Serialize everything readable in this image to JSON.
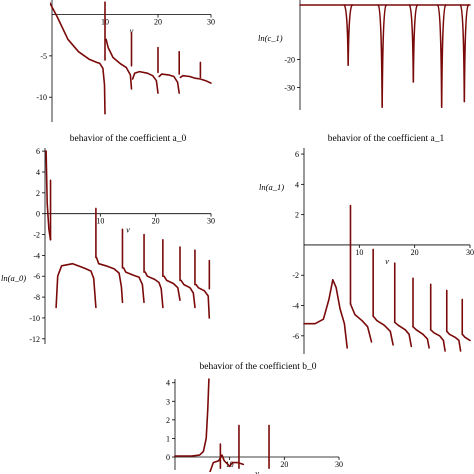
{
  "chart_data": [
    {
      "type": "line",
      "title": "",
      "xlabel": "v",
      "ylabel": "",
      "xlim": [
        0,
        30
      ],
      "ylim": [
        -13,
        2
      ],
      "xticks": [
        10,
        20,
        30
      ],
      "yticks": [
        -5,
        -10
      ],
      "series": [
        {
          "points": [
            [
              -0.5,
              1.5
            ],
            [
              1,
              -0.3
            ],
            [
              3,
              -3
            ],
            [
              5,
              -4.5
            ],
            [
              7,
              -5.4
            ],
            [
              8.5,
              -5.8
            ],
            [
              9,
              -5.9
            ],
            [
              9.6,
              -6.5
            ],
            [
              9.9,
              -8.5
            ],
            [
              10,
              -12
            ]
          ]
        },
        {
          "points": [
            [
              10.2,
              -3
            ],
            [
              10.6,
              -4
            ],
            [
              11.5,
              -5.2
            ],
            [
              13,
              -6
            ],
            [
              14,
              -6.4
            ],
            [
              14.8,
              -7.3
            ],
            [
              15,
              -9
            ]
          ]
        },
        {
          "points": [
            [
              15.2,
              -7.8
            ],
            [
              15.6,
              -7.1
            ],
            [
              16.5,
              -6.9
            ],
            [
              18,
              -7.1
            ],
            [
              19,
              -7.4
            ],
            [
              19.7,
              -8
            ],
            [
              20,
              -9.5
            ]
          ]
        },
        {
          "points": [
            [
              20.2,
              -7.5
            ],
            [
              20.7,
              -7.2
            ],
            [
              22,
              -7.3
            ],
            [
              23,
              -7.5
            ],
            [
              23.7,
              -8.2
            ],
            [
              24,
              -9.5
            ]
          ]
        },
        {
          "points": [
            [
              24.2,
              -7.6
            ],
            [
              24.7,
              -7.4
            ],
            [
              26,
              -7.5
            ],
            [
              27,
              -7.7
            ],
            [
              28,
              -7.8
            ],
            [
              29,
              -8
            ],
            [
              30,
              -8.3
            ]
          ]
        }
      ],
      "spikes": [
        {
          "x": 10,
          "from": -5.5,
          "to": 1.5
        },
        {
          "x": 15,
          "from": -6.2,
          "to": -2.2
        },
        {
          "x": 20,
          "from": -7,
          "to": -4
        },
        {
          "x": 24,
          "from": -7.2,
          "to": -4.5
        },
        {
          "x": 28,
          "from": -7.6,
          "to": -5.8
        }
      ]
    },
    {
      "type": "line",
      "title": "",
      "xlabel": "",
      "ylabel": "ln(c_1)",
      "xlim": [
        0,
        30
      ],
      "ylim": [
        -38,
        2
      ],
      "xticks": [],
      "yticks": [
        -20,
        -30
      ],
      "flat": {
        "x0": 0,
        "x1": 30,
        "y": -0.5
      },
      "dips": [
        {
          "x": 8.5,
          "depth": -22
        },
        {
          "x": 14.5,
          "depth": -37
        },
        {
          "x": 20,
          "depth": -28
        },
        {
          "x": 25,
          "depth": -37
        },
        {
          "x": 29,
          "depth": -35
        }
      ]
    },
    {
      "type": "line",
      "title": "behavior of the coefficient a_0",
      "xlabel": "v",
      "ylabel": "ln(a_0)",
      "xlim": [
        0,
        30
      ],
      "ylim": [
        -12.5,
        6.3
      ],
      "xticks": [
        10,
        20,
        30
      ],
      "yticks": [
        6,
        4,
        2,
        0,
        -2,
        -4,
        -6,
        -8,
        -10,
        -12
      ],
      "series": [
        {
          "points": [
            [
              0.2,
              6
            ],
            [
              0.4,
              1
            ],
            [
              0.7,
              -1.5
            ],
            [
              1,
              -2.5
            ]
          ]
        },
        {
          "points": [
            [
              2,
              -9
            ],
            [
              2.3,
              -6
            ],
            [
              3,
              -5
            ],
            [
              5,
              -4.8
            ],
            [
              7,
              -5.2
            ],
            [
              8.3,
              -5.5
            ],
            [
              8.8,
              -6.2
            ],
            [
              9.2,
              -9
            ]
          ]
        },
        {
          "points": [
            [
              9.3,
              -4.2
            ],
            [
              9.7,
              -4.8
            ],
            [
              11,
              -5
            ],
            [
              12.5,
              -5.3
            ],
            [
              13.4,
              -5.7
            ],
            [
              13.8,
              -7
            ],
            [
              14,
              -8.5
            ]
          ]
        },
        {
          "points": [
            [
              14.2,
              -5.2
            ],
            [
              14.6,
              -5.6
            ],
            [
              16,
              -5.9
            ],
            [
              17,
              -6.1
            ],
            [
              17.6,
              -6.8
            ],
            [
              17.9,
              -8.5
            ]
          ]
        },
        {
          "points": [
            [
              18.1,
              -5.6
            ],
            [
              18.5,
              -6
            ],
            [
              19.8,
              -6.3
            ],
            [
              20.6,
              -6.6
            ],
            [
              21,
              -7.2
            ],
            [
              21.3,
              -9
            ]
          ]
        },
        {
          "points": [
            [
              21.5,
              -6
            ],
            [
              22,
              -6.4
            ],
            [
              23.2,
              -6.7
            ],
            [
              24,
              -7.1
            ],
            [
              24.4,
              -8.3
            ]
          ]
        },
        {
          "points": [
            [
              24.6,
              -6.4
            ],
            [
              25.1,
              -6.8
            ],
            [
              26.2,
              -7.1
            ],
            [
              26.8,
              -7.6
            ],
            [
              27.1,
              -9
            ]
          ]
        },
        {
          "points": [
            [
              27.3,
              -6.8
            ],
            [
              27.7,
              -7.1
            ],
            [
              28.8,
              -7.4
            ],
            [
              29.5,
              -7.9
            ],
            [
              29.7,
              -10
            ]
          ]
        }
      ],
      "spikes": [
        {
          "x": 1,
          "from": -2.5,
          "to": 3.2
        },
        {
          "x": 9.2,
          "from": -4.2,
          "to": 0.5
        },
        {
          "x": 14,
          "from": -5.2,
          "to": -1.5
        },
        {
          "x": 17.9,
          "from": -5.6,
          "to": -2
        },
        {
          "x": 21.3,
          "from": -6,
          "to": -2.5
        },
        {
          "x": 24.4,
          "from": -6.4,
          "to": -3.2
        },
        {
          "x": 27.1,
          "from": -6.8,
          "to": -3.5
        },
        {
          "x": 29.7,
          "from": -7.2,
          "to": -4.5
        }
      ]
    },
    {
      "type": "line",
      "title": "behavior of the coefficient a_1",
      "xlabel": "v",
      "ylabel": "ln(a_1)",
      "xlim": [
        0,
        30
      ],
      "ylim": [
        -7.2,
        6.4
      ],
      "xticks": [
        10,
        20,
        30
      ],
      "yticks": [
        6,
        4,
        2,
        -2,
        -4,
        -6
      ],
      "series": [
        {
          "points": [
            [
              0,
              -5.2
            ],
            [
              2,
              -5.2
            ],
            [
              3.5,
              -4.9
            ],
            [
              4.5,
              -3.6
            ],
            [
              5.2,
              -2.3
            ],
            [
              5.8,
              -2.8
            ],
            [
              6.5,
              -4.2
            ],
            [
              7.3,
              -5.2
            ],
            [
              7.8,
              -6.8
            ]
          ]
        },
        {
          "points": [
            [
              8.4,
              -3.9
            ],
            [
              9.2,
              -4.6
            ],
            [
              10.5,
              -5
            ],
            [
              11.5,
              -5.4
            ],
            [
              12.2,
              -6.4
            ]
          ]
        },
        {
          "points": [
            [
              12.5,
              -4.7
            ],
            [
              13.2,
              -5
            ],
            [
              14.5,
              -5.3
            ],
            [
              15.6,
              -5.7
            ],
            [
              16.1,
              -6.6
            ]
          ]
        },
        {
          "points": [
            [
              16.4,
              -5.1
            ],
            [
              17,
              -5.3
            ],
            [
              18.3,
              -5.6
            ],
            [
              19,
              -5.9
            ],
            [
              19.4,
              -6.7
            ]
          ]
        },
        {
          "points": [
            [
              19.7,
              -5.4
            ],
            [
              20.3,
              -5.6
            ],
            [
              21.5,
              -5.9
            ],
            [
              22.3,
              -6.2
            ],
            [
              22.6,
              -6.8
            ]
          ]
        },
        {
          "points": [
            [
              22.9,
              -5.6
            ],
            [
              23.5,
              -5.8
            ],
            [
              24.5,
              -6
            ],
            [
              25.2,
              -6.3
            ],
            [
              25.5,
              -7
            ]
          ]
        },
        {
          "points": [
            [
              25.8,
              -5.7
            ],
            [
              26.3,
              -5.9
            ],
            [
              27.3,
              -6.1
            ],
            [
              28,
              -6.3
            ],
            [
              28.3,
              -7
            ]
          ]
        },
        {
          "points": [
            [
              28.6,
              -5.9
            ],
            [
              29.1,
              -6.1
            ],
            [
              30,
              -6.3
            ]
          ]
        }
      ],
      "spikes": [
        {
          "x": 8.4,
          "from": -3.9,
          "to": 2.6
        },
        {
          "x": 12.5,
          "from": -4.7,
          "to": -0.3
        },
        {
          "x": 16.4,
          "from": -5.1,
          "to": -1.2
        },
        {
          "x": 19.7,
          "from": -5.4,
          "to": -2.2
        },
        {
          "x": 22.9,
          "from": -5.6,
          "to": -2.6
        },
        {
          "x": 25.8,
          "from": -5.7,
          "to": -3
        },
        {
          "x": 28.6,
          "from": -5.9,
          "to": -3.6
        }
      ]
    },
    {
      "type": "line",
      "title": "behavior of the coefficient b_0",
      "xlabel": "v",
      "ylabel": "",
      "xlim": [
        0,
        30
      ],
      "ylim": [
        -0.7,
        4.2
      ],
      "xticks": [
        10,
        20,
        30
      ],
      "yticks": [
        4,
        3,
        2,
        1,
        0
      ],
      "series": [
        {
          "points": [
            [
              0,
              0.05
            ],
            [
              3,
              0.05
            ],
            [
              4.5,
              0.1
            ],
            [
              5.2,
              0.3
            ],
            [
              5.7,
              1
            ],
            [
              6,
              2.6
            ],
            [
              6.2,
              4.2
            ]
          ]
        },
        {
          "points": [
            [
              6.4,
              -0.8
            ],
            [
              7,
              -0.3
            ],
            [
              8,
              -0.2
            ]
          ]
        },
        {
          "points": [
            [
              8,
              -0.2
            ],
            [
              8.6,
              0.1
            ],
            [
              9,
              -0.2
            ],
            [
              10,
              -0.5
            ]
          ]
        },
        {
          "points": [
            [
              10,
              -0.5
            ],
            [
              10.5,
              -0.3
            ],
            [
              11.5,
              -0.3
            ],
            [
              12.5,
              -0.4
            ]
          ]
        }
      ],
      "spikes": [
        {
          "x": 8.3,
          "from": -0.6,
          "to": 0.7
        },
        {
          "x": 11.7,
          "from": -0.6,
          "to": 1.7
        },
        {
          "x": 17.2,
          "from": -0.6,
          "to": 1.7
        }
      ]
    }
  ]
}
